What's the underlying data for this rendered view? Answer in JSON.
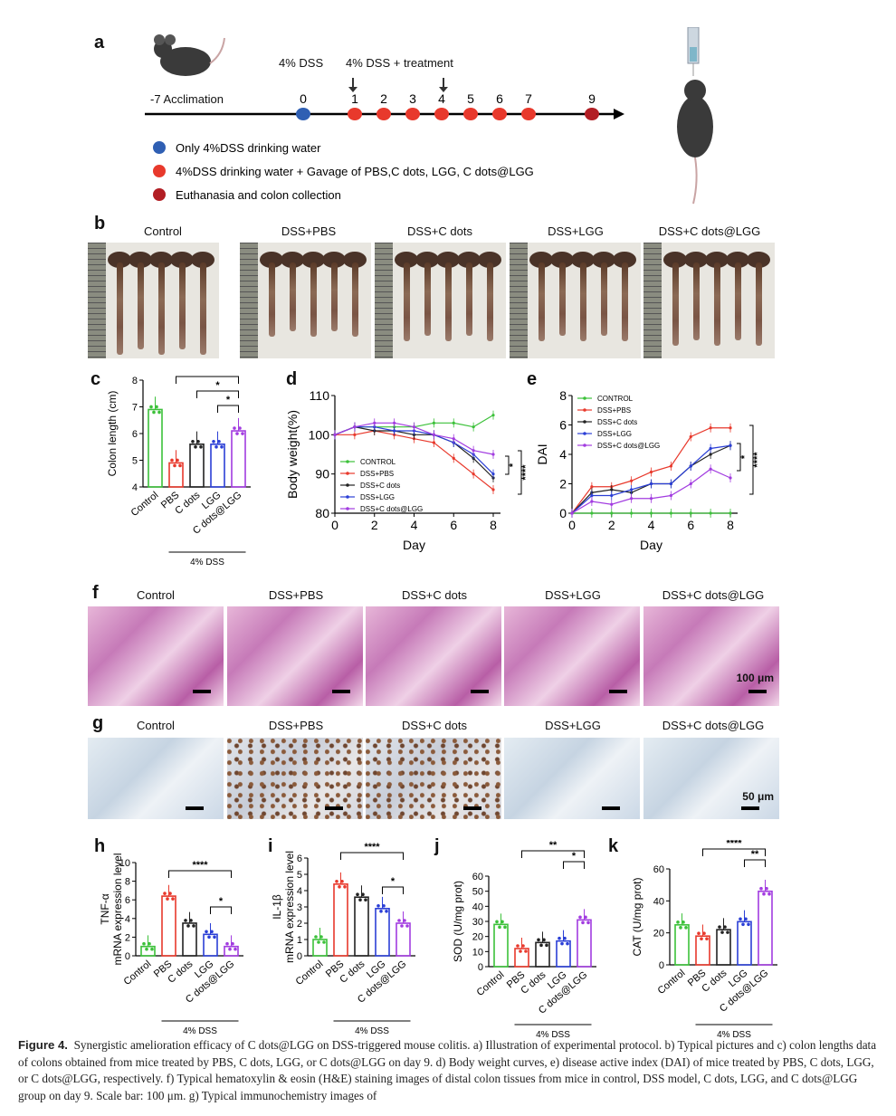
{
  "panels": {
    "a": "a",
    "b": "b",
    "c": "c",
    "d": "d",
    "e": "e",
    "f": "f",
    "g": "g",
    "h": "h",
    "i": "i",
    "j": "j",
    "k": "k"
  },
  "protocol": {
    "acclimation": "-7 Acclimation",
    "dss_label": "4% DSS",
    "dss_treat_label": "4% DSS + treatment",
    "days": [
      "0",
      "1",
      "2",
      "3",
      "4",
      "5",
      "6",
      "7",
      "9"
    ],
    "legend": [
      {
        "text": "Only 4%DSS drinking water",
        "color": "#2f5fb3"
      },
      {
        "text": "4%DSS drinking water + Gavage of PBS,C dots, LGG, C dots@LGG",
        "color": "#e8392c"
      },
      {
        "text": "Euthanasia and colon collection",
        "color": "#b21e24"
      }
    ]
  },
  "groups": [
    "Control",
    "DSS+PBS",
    "DSS+C dots",
    "DSS+LGG",
    "DSS+C dots@LGG"
  ],
  "bar_categories": [
    "Control",
    "PBS",
    "C dots",
    "LGG",
    "C dots@LGG"
  ],
  "dss_group": "4% DSS",
  "scalebars": {
    "he": "100 μm",
    "ihc": "50 μm"
  },
  "colors": {
    "control": "#3cc13a",
    "pbs": "#e8392c",
    "cdots": "#222222",
    "lgg": "#2b3fd6",
    "cdotslgg": "#a23ce0"
  },
  "chart_data": [
    {
      "panel": "c",
      "type": "bar",
      "categories": [
        "Control",
        "PBS",
        "C dots",
        "LGG",
        "C dots@LGG"
      ],
      "values": [
        6.9,
        4.9,
        5.6,
        5.6,
        6.1
      ],
      "ylabel": "Colon length (cm)",
      "ylim": [
        4,
        8
      ],
      "yticks": [
        "4",
        "5",
        "6",
        "7",
        "8"
      ],
      "significance": [
        {
          "from": "PBS",
          "to": "C dots@LGG",
          "label": "****"
        },
        {
          "from": "C dots",
          "to": "C dots@LGG",
          "label": "*"
        },
        {
          "from": "LGG",
          "to": "C dots@LGG",
          "label": "*"
        }
      ]
    },
    {
      "panel": "d",
      "type": "line",
      "x": [
        0,
        1,
        2,
        3,
        4,
        5,
        6,
        7,
        8
      ],
      "xlabel": "Day",
      "ylabel": "Body weight(%)",
      "ylim": [
        80,
        110
      ],
      "xticks": [
        "0",
        "2",
        "4",
        "6",
        "8"
      ],
      "yticks": [
        "80",
        "90",
        "100",
        "110"
      ],
      "series": [
        {
          "name": "CONTROL",
          "values": [
            100,
            102,
            102,
            102,
            102,
            103,
            103,
            102,
            105
          ]
        },
        {
          "name": "DSS+PBS",
          "values": [
            100,
            100,
            101,
            100,
            99,
            98,
            94,
            90,
            86
          ]
        },
        {
          "name": "DSS+C dots",
          "values": [
            100,
            102,
            101,
            101,
            100,
            100,
            98,
            94,
            89
          ]
        },
        {
          "name": "DSS+LGG",
          "values": [
            100,
            102,
            102,
            101,
            101,
            100,
            98,
            95,
            90
          ]
        },
        {
          "name": "DSS+C dots@LGG",
          "values": [
            100,
            102,
            103,
            103,
            102,
            100,
            99,
            96,
            95
          ]
        }
      ],
      "significance": [
        {
          "label": "*"
        },
        {
          "label": "****"
        }
      ]
    },
    {
      "panel": "e",
      "type": "line",
      "x": [
        0,
        1,
        2,
        3,
        4,
        5,
        6,
        7,
        8
      ],
      "xlabel": "Day",
      "ylabel": "DAI",
      "ylim": [
        0,
        8
      ],
      "xticks": [
        "0",
        "2",
        "4",
        "6",
        "8"
      ],
      "yticks": [
        "0",
        "2",
        "4",
        "6",
        "8"
      ],
      "series": [
        {
          "name": "CONTROL",
          "values": [
            0,
            0,
            0,
            0,
            0,
            0,
            0,
            0,
            0
          ]
        },
        {
          "name": "DSS+PBS",
          "values": [
            0,
            1.8,
            1.8,
            2.2,
            2.8,
            3.2,
            5.2,
            5.8,
            5.8
          ]
        },
        {
          "name": "DSS+C dots",
          "values": [
            0,
            1.4,
            1.6,
            1.4,
            2,
            2,
            3.2,
            4,
            4.6
          ]
        },
        {
          "name": "DSS+LGG",
          "values": [
            0,
            1.2,
            1.2,
            1.6,
            2,
            2,
            3.2,
            4.4,
            4.6
          ]
        },
        {
          "name": "DSS+C dots@LGG",
          "values": [
            0,
            0.8,
            0.6,
            1,
            1,
            1.2,
            2,
            3,
            2.4
          ]
        }
      ],
      "significance": [
        {
          "label": "*"
        },
        {
          "label": "****"
        }
      ]
    },
    {
      "panel": "h",
      "type": "bar",
      "categories": [
        "Control",
        "PBS",
        "C dots",
        "LGG",
        "C dots@LGG"
      ],
      "values": [
        1.0,
        6.4,
        3.5,
        2.3,
        1.0
      ],
      "ylabel": "TNF-α mRNA expression level",
      "ylim": [
        0,
        10
      ],
      "yticks": [
        "0",
        "2",
        "4",
        "6",
        "8",
        "10"
      ],
      "significance": [
        {
          "from": "PBS",
          "to": "C dots@LGG",
          "label": "****"
        },
        {
          "from": "LGG",
          "to": "C dots@LGG",
          "label": "*"
        }
      ]
    },
    {
      "panel": "i",
      "type": "bar",
      "categories": [
        "Control",
        "PBS",
        "C dots",
        "LGG",
        "C dots@LGG"
      ],
      "values": [
        1.0,
        4.4,
        3.6,
        2.9,
        2.0
      ],
      "ylabel": "IL-1β mRNA expression level",
      "ylim": [
        0,
        6
      ],
      "yticks": [
        "0",
        "1",
        "2",
        "3",
        "4",
        "5",
        "6"
      ],
      "significance": [
        {
          "from": "PBS",
          "to": "C dots@LGG",
          "label": "****"
        },
        {
          "from": "LGG",
          "to": "C dots@LGG",
          "label": "*"
        }
      ]
    },
    {
      "panel": "j",
      "type": "bar",
      "categories": [
        "Control",
        "PBS",
        "C dots",
        "LGG",
        "C dots@LGG"
      ],
      "values": [
        28,
        12,
        16,
        17,
        31
      ],
      "ylabel": "SOD (U/mg prot)",
      "ylim": [
        0,
        60
      ],
      "yticks": [
        "0",
        "10",
        "20",
        "30",
        "40",
        "50",
        "60"
      ],
      "significance": [
        {
          "from": "PBS",
          "to": "C dots@LGG",
          "label": "**"
        },
        {
          "from": "LGG",
          "to": "C dots@LGG",
          "label": "*"
        }
      ]
    },
    {
      "panel": "k",
      "type": "bar",
      "categories": [
        "Control",
        "PBS",
        "C dots",
        "LGG",
        "C dots@LGG"
      ],
      "values": [
        25,
        18,
        22,
        27,
        46
      ],
      "ylabel": "CAT (U/mg prot)",
      "ylim": [
        0,
        60
      ],
      "yticks": [
        "0",
        "20",
        "40",
        "60"
      ],
      "significance": [
        {
          "from": "PBS",
          "to": "C dots@LGG",
          "label": "****"
        },
        {
          "from": "LGG",
          "to": "C dots@LGG",
          "label": "**"
        }
      ]
    }
  ],
  "caption": {
    "label": "Figure 4.",
    "text": "Synergistic amelioration efficacy of C dots@LGG on DSS-triggered mouse colitis. a) Illustration of experimental protocol. b) Typical pictures and c) colon lengths data of colons obtained from mice treated by PBS, C dots, LGG, or C dots@LGG on day 9. d) Body weight curves, e) disease active index (DAI) of mice treated by PBS, C dots, LGG, or C dots@LGG, respectively. f) Typical hematoxylin & eosin (H&E) staining images of distal colon tissues from mice in control, DSS model, C dots, LGG, and C dots@LGG group on day 9. Scale bar: 100 μm. g) Typical immunochemistry images of"
  }
}
